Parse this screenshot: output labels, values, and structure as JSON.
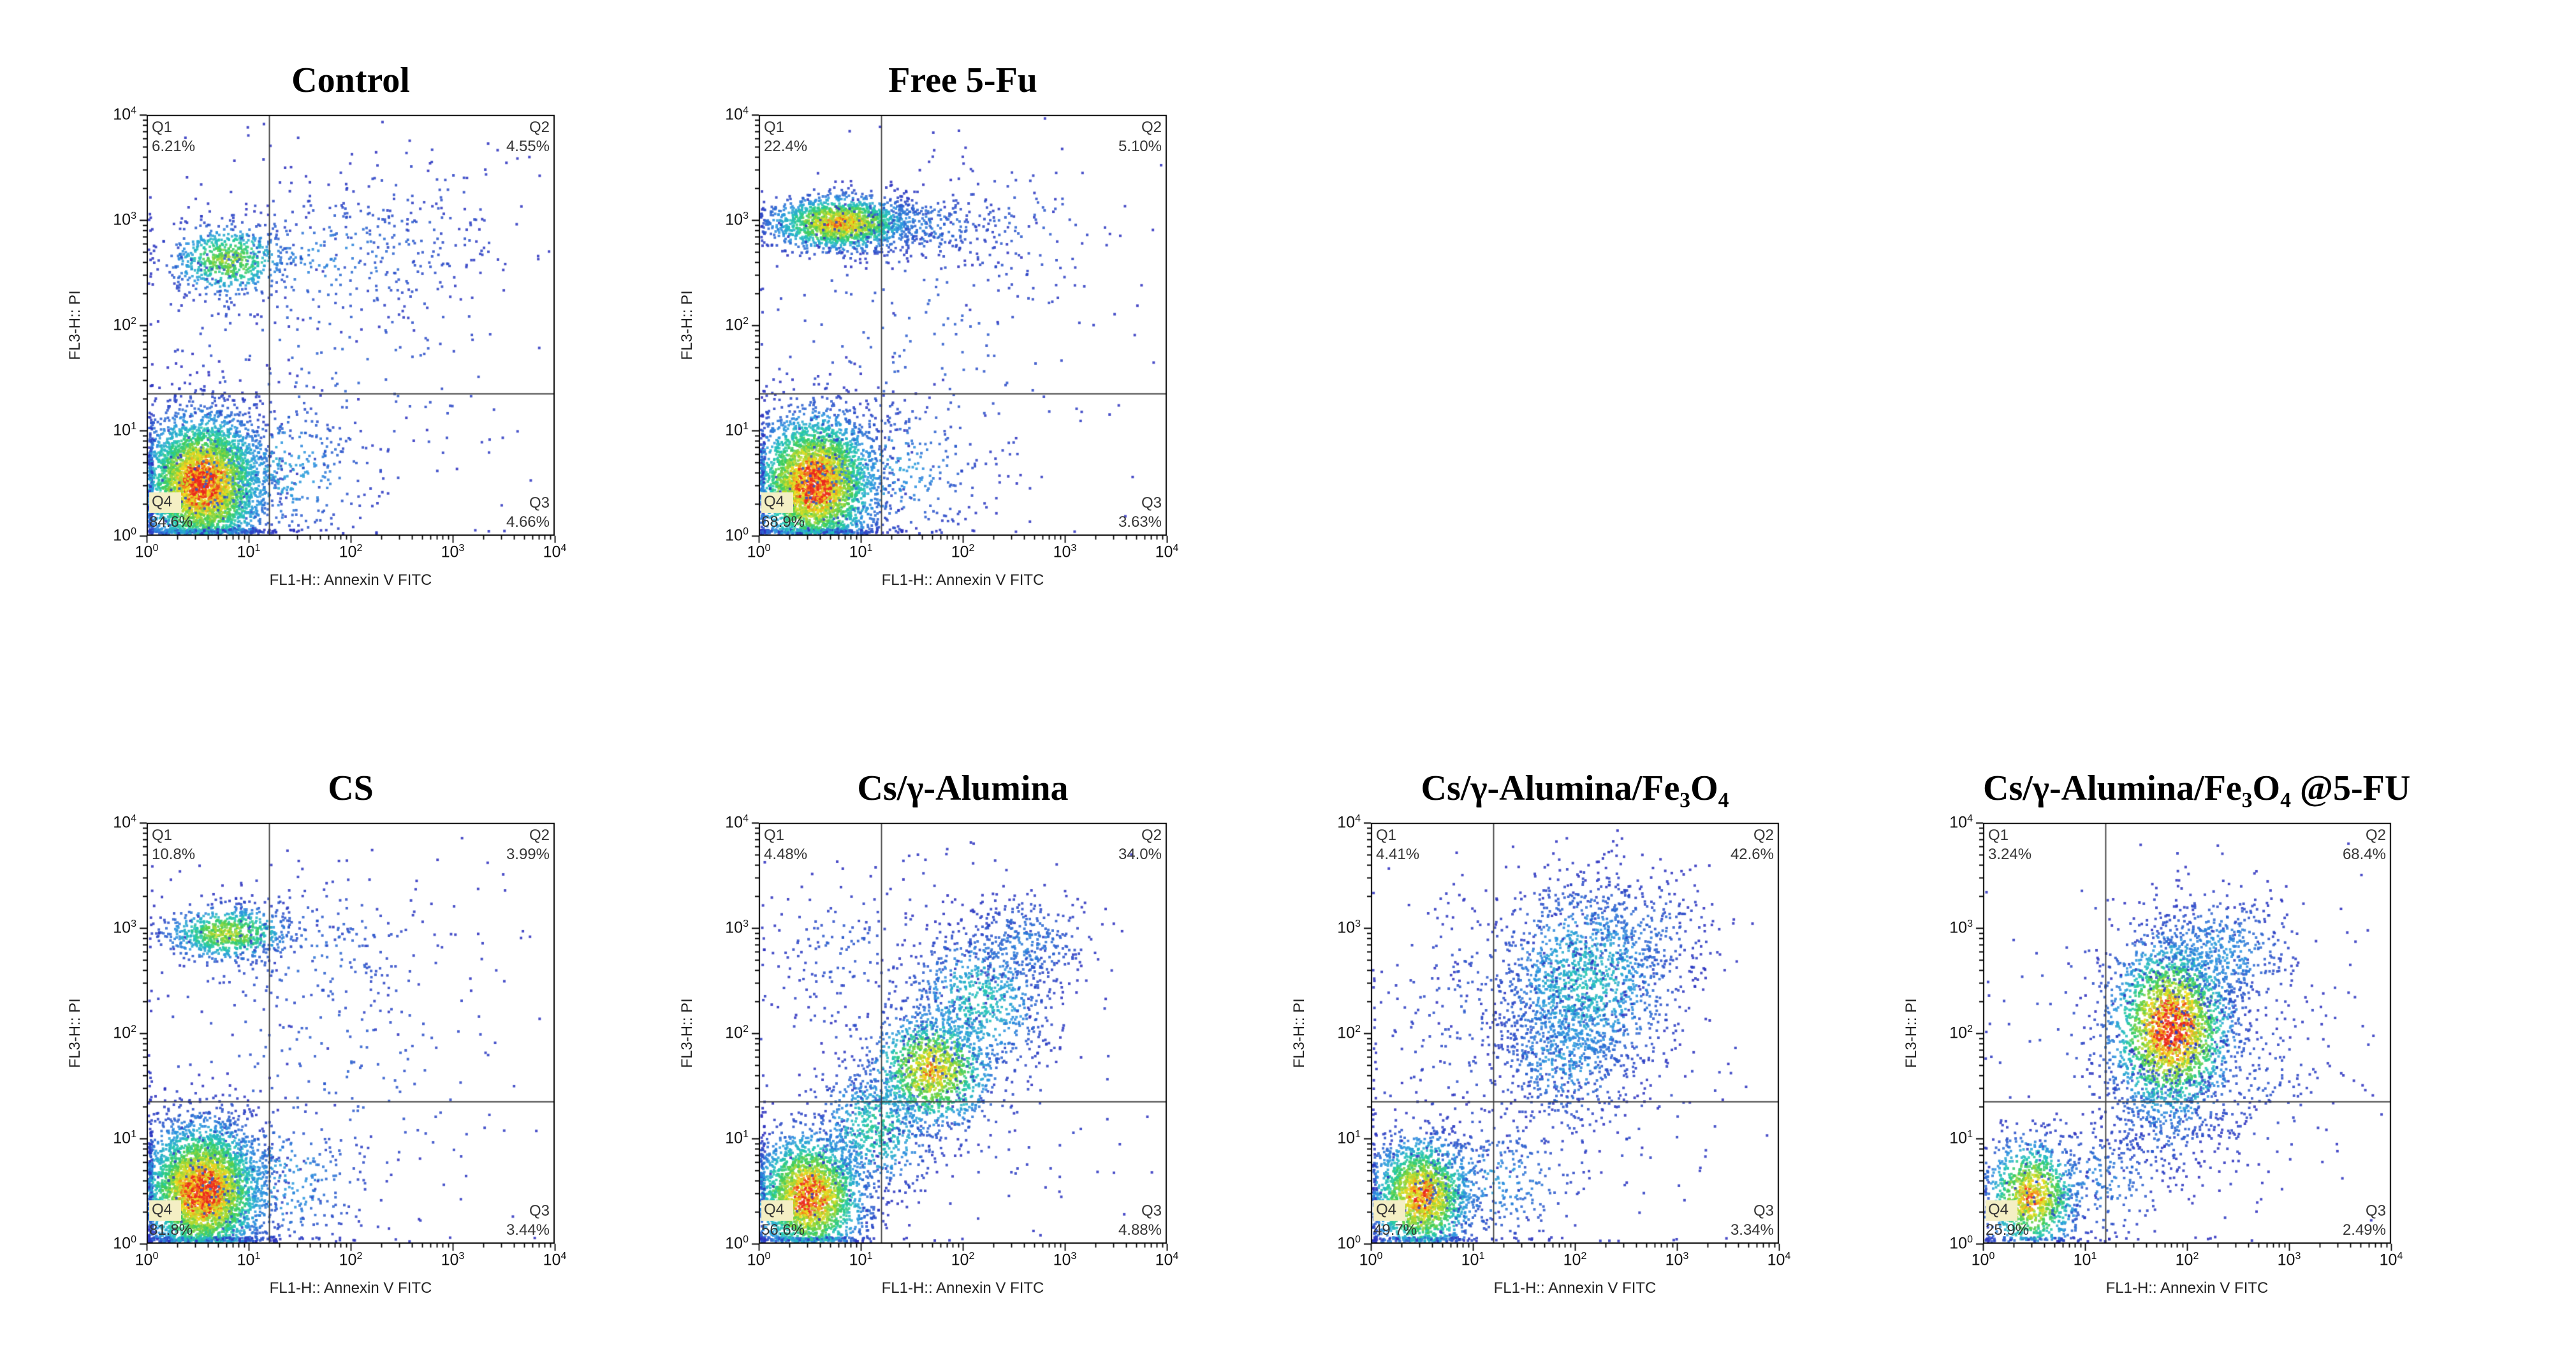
{
  "axis": {
    "x_label": "FL1-H:: Annexin V FITC",
    "y_label": "FL3-H:: PI",
    "tick_exponents": [
      0,
      1,
      2,
      3,
      4
    ]
  },
  "colors": {
    "density_scale": [
      "#2d2dbe",
      "#2d96e1",
      "#23c8b4",
      "#3ccd5a",
      "#aad732",
      "#f5e11e",
      "#f59619",
      "#eb281e"
    ],
    "frame": "#000000",
    "gate_line": "#3c3c3c",
    "quadrant_label": "#353535",
    "q4_chip_bg": "#f4efc4",
    "background": "#ffffff"
  },
  "chart_data": [
    {
      "type": "scatter",
      "title": "Control",
      "grid": {
        "row": 0,
        "col": 0
      },
      "xlabel": "FL1-H:: Annexin V FITC",
      "ylabel": "FL3-H:: PI",
      "x_scale": "log10",
      "y_scale": "log10",
      "x_log_range": [
        0,
        4
      ],
      "y_log_range": [
        0,
        4
      ],
      "gate": {
        "x_log": 1.2,
        "y_log": 1.35
      },
      "quadrants": [
        {
          "name": "Q1",
          "value": "6.21%",
          "position": "top-left"
        },
        {
          "name": "Q2",
          "value": "4.55%",
          "position": "top-right"
        },
        {
          "name": "Q3",
          "value": "4.66%",
          "position": "bottom-right"
        },
        {
          "name": "Q4",
          "value": "84.6%",
          "position": "bottom-left"
        }
      ],
      "clusters": [
        {
          "cx": 0.55,
          "cy": 0.5,
          "sx": 0.3,
          "sy": 0.33,
          "n": 4200,
          "density": 1.0
        },
        {
          "cx": 1.25,
          "cy": 0.62,
          "sx": 0.5,
          "sy": 0.35,
          "n": 380,
          "density": 0.22
        },
        {
          "cx": 0.8,
          "cy": 2.62,
          "sx": 0.28,
          "sy": 0.17,
          "n": 650,
          "density": 0.6
        },
        {
          "cx": 1.7,
          "cy": 2.65,
          "sx": 0.8,
          "sy": 0.33,
          "n": 300,
          "density": 0.14
        },
        {
          "cx": 1.8,
          "cy": 1.7,
          "sx": 1.1,
          "sy": 1.1,
          "n": 260,
          "density": 0.08
        },
        {
          "cx": 2.6,
          "cy": 2.9,
          "sx": 0.6,
          "sy": 0.45,
          "n": 110,
          "density": 0.08
        }
      ]
    },
    {
      "type": "scatter",
      "title": "Free 5-Fu",
      "grid": {
        "row": 0,
        "col": 1
      },
      "xlabel": "FL1-H:: Annexin V FITC",
      "ylabel": "FL3-H:: PI",
      "x_scale": "log10",
      "y_scale": "log10",
      "x_log_range": [
        0,
        4
      ],
      "y_log_range": [
        0,
        4
      ],
      "gate": {
        "x_log": 1.2,
        "y_log": 1.35
      },
      "quadrants": [
        {
          "name": "Q1",
          "value": "22.4%",
          "position": "top-left"
        },
        {
          "name": "Q2",
          "value": "5.10%",
          "position": "top-right"
        },
        {
          "name": "Q3",
          "value": "3.63%",
          "position": "bottom-right"
        },
        {
          "name": "Q4",
          "value": "68.9%",
          "position": "bottom-left"
        }
      ],
      "clusters": [
        {
          "cx": 0.55,
          "cy": 0.5,
          "sx": 0.3,
          "sy": 0.33,
          "n": 3600,
          "density": 1.0
        },
        {
          "cx": 1.25,
          "cy": 0.62,
          "sx": 0.5,
          "sy": 0.35,
          "n": 330,
          "density": 0.2
        },
        {
          "cx": 0.8,
          "cy": 2.97,
          "sx": 0.34,
          "sy": 0.13,
          "n": 1700,
          "density": 0.85
        },
        {
          "cx": 1.55,
          "cy": 2.95,
          "sx": 0.45,
          "sy": 0.17,
          "n": 260,
          "density": 0.14
        },
        {
          "cx": 1.6,
          "cy": 1.8,
          "sx": 1.0,
          "sy": 1.0,
          "n": 250,
          "density": 0.08
        },
        {
          "cx": 2.5,
          "cy": 2.9,
          "sx": 0.55,
          "sy": 0.4,
          "n": 100,
          "density": 0.08
        }
      ]
    },
    {
      "type": "scatter",
      "title": "CS",
      "grid": {
        "row": 1,
        "col": 0
      },
      "xlabel": "FL1-H:: Annexin V FITC",
      "ylabel": "FL3-H:: PI",
      "x_scale": "log10",
      "y_scale": "log10",
      "x_log_range": [
        0,
        4
      ],
      "y_log_range": [
        0,
        4
      ],
      "gate": {
        "x_log": 1.2,
        "y_log": 1.35
      },
      "quadrants": [
        {
          "name": "Q1",
          "value": "10.8%",
          "position": "top-left"
        },
        {
          "name": "Q2",
          "value": "3.99%",
          "position": "top-right"
        },
        {
          "name": "Q3",
          "value": "3.44%",
          "position": "bottom-right"
        },
        {
          "name": "Q4",
          "value": "81.8%",
          "position": "bottom-left"
        }
      ],
      "clusters": [
        {
          "cx": 0.55,
          "cy": 0.5,
          "sx": 0.3,
          "sy": 0.33,
          "n": 4000,
          "density": 1.0
        },
        {
          "cx": 1.25,
          "cy": 0.6,
          "sx": 0.5,
          "sy": 0.35,
          "n": 360,
          "density": 0.2
        },
        {
          "cx": 0.8,
          "cy": 2.95,
          "sx": 0.3,
          "sy": 0.13,
          "n": 750,
          "density": 0.65
        },
        {
          "cx": 1.6,
          "cy": 2.8,
          "sx": 0.7,
          "sy": 0.4,
          "n": 220,
          "density": 0.1
        },
        {
          "cx": 1.7,
          "cy": 1.7,
          "sx": 1.1,
          "sy": 1.0,
          "n": 260,
          "density": 0.08
        }
      ]
    },
    {
      "type": "scatter",
      "title": "Cs/γ-Alumina",
      "grid": {
        "row": 1,
        "col": 1
      },
      "xlabel": "FL1-H:: Annexin V FITC",
      "ylabel": "FL3-H:: PI",
      "x_scale": "log10",
      "y_scale": "log10",
      "x_log_range": [
        0,
        4
      ],
      "y_log_range": [
        0,
        4
      ],
      "gate": {
        "x_log": 1.2,
        "y_log": 1.35
      },
      "quadrants": [
        {
          "name": "Q1",
          "value": "4.48%",
          "position": "top-left"
        },
        {
          "name": "Q2",
          "value": "34.0%",
          "position": "top-right"
        },
        {
          "name": "Q3",
          "value": "4.88%",
          "position": "bottom-right"
        },
        {
          "name": "Q4",
          "value": "56.6%",
          "position": "bottom-left"
        }
      ],
      "clusters": [
        {
          "cx": 0.5,
          "cy": 0.45,
          "sx": 0.27,
          "sy": 0.3,
          "n": 2400,
          "density": 0.95
        },
        {
          "cx": 1.15,
          "cy": 1.1,
          "sx": 0.3,
          "sy": 0.3,
          "n": 650,
          "density": 0.38
        },
        {
          "cx": 1.7,
          "cy": 1.65,
          "sx": 0.3,
          "sy": 0.28,
          "n": 1300,
          "density": 0.8
        },
        {
          "cx": 2.15,
          "cy": 2.3,
          "sx": 0.35,
          "sy": 0.35,
          "n": 750,
          "density": 0.32
        },
        {
          "cx": 2.6,
          "cy": 2.85,
          "sx": 0.33,
          "sy": 0.24,
          "n": 330,
          "density": 0.14
        },
        {
          "cx": 0.85,
          "cy": 2.8,
          "sx": 0.4,
          "sy": 0.3,
          "n": 110,
          "density": 0.08
        },
        {
          "cx": 1.7,
          "cy": 1.9,
          "sx": 1.1,
          "sy": 1.0,
          "n": 280,
          "density": 0.07
        }
      ]
    },
    {
      "type": "scatter",
      "title": "Cs/γ-Alumina/Fe₃O₄",
      "grid": {
        "row": 1,
        "col": 2
      },
      "xlabel": "FL1-H:: Annexin V FITC",
      "ylabel": "FL3-H:: PI",
      "x_scale": "log10",
      "y_scale": "log10",
      "x_log_range": [
        0,
        4
      ],
      "y_log_range": [
        0,
        4
      ],
      "gate": {
        "x_log": 1.2,
        "y_log": 1.35
      },
      "quadrants": [
        {
          "name": "Q1",
          "value": "4.41%",
          "position": "top-left"
        },
        {
          "name": "Q2",
          "value": "42.6%",
          "position": "top-right"
        },
        {
          "name": "Q3",
          "value": "3.34%",
          "position": "bottom-right"
        },
        {
          "name": "Q4",
          "value": "49.7%",
          "position": "bottom-left"
        }
      ],
      "clusters": [
        {
          "cx": 0.5,
          "cy": 0.45,
          "sx": 0.25,
          "sy": 0.28,
          "n": 1900,
          "density": 0.9
        },
        {
          "cx": 1.2,
          "cy": 0.6,
          "sx": 0.45,
          "sy": 0.3,
          "n": 330,
          "density": 0.18
        },
        {
          "cx": 2.1,
          "cy": 2.5,
          "sx": 0.45,
          "sy": 0.48,
          "n": 1500,
          "density": 0.3
        },
        {
          "cx": 1.9,
          "cy": 1.8,
          "sx": 0.35,
          "sy": 0.35,
          "n": 450,
          "density": 0.2
        },
        {
          "cx": 2.6,
          "cy": 2.95,
          "sx": 0.4,
          "sy": 0.28,
          "n": 230,
          "density": 0.12
        },
        {
          "cx": 1.0,
          "cy": 2.3,
          "sx": 0.5,
          "sy": 0.6,
          "n": 170,
          "density": 0.07
        },
        {
          "cx": 1.7,
          "cy": 1.6,
          "sx": 1.1,
          "sy": 1.0,
          "n": 260,
          "density": 0.07
        }
      ]
    },
    {
      "type": "scatter",
      "title": "Cs/γ-Alumina/Fe₃O₄ @5-FU",
      "grid": {
        "row": 1,
        "col": 3
      },
      "xlabel": "FL1-H:: Annexin V FITC",
      "ylabel": "FL3-H:: PI",
      "x_scale": "log10",
      "y_scale": "log10",
      "x_log_range": [
        0,
        4
      ],
      "y_log_range": [
        0,
        4
      ],
      "gate": {
        "x_log": 1.2,
        "y_log": 1.35
      },
      "quadrants": [
        {
          "name": "Q1",
          "value": "3.24%",
          "position": "top-left"
        },
        {
          "name": "Q2",
          "value": "68.4%",
          "position": "top-right"
        },
        {
          "name": "Q3",
          "value": "2.49%",
          "position": "bottom-right"
        },
        {
          "name": "Q4",
          "value": "25.9%",
          "position": "bottom-left"
        }
      ],
      "clusters": [
        {
          "cx": 0.48,
          "cy": 0.45,
          "sx": 0.23,
          "sy": 0.27,
          "n": 1100,
          "density": 0.85
        },
        {
          "cx": 1.1,
          "cy": 0.6,
          "sx": 0.42,
          "sy": 0.3,
          "n": 240,
          "density": 0.14
        },
        {
          "cx": 1.85,
          "cy": 2.05,
          "sx": 0.3,
          "sy": 0.42,
          "n": 2500,
          "density": 1.0
        },
        {
          "cx": 2.3,
          "cy": 2.75,
          "sx": 0.4,
          "sy": 0.3,
          "n": 550,
          "density": 0.18
        },
        {
          "cx": 1.75,
          "cy": 1.25,
          "sx": 0.33,
          "sy": 0.3,
          "n": 280,
          "density": 0.14
        },
        {
          "cx": 2.55,
          "cy": 1.6,
          "sx": 0.5,
          "sy": 0.5,
          "n": 180,
          "density": 0.07
        },
        {
          "cx": 1.8,
          "cy": 1.9,
          "sx": 1.1,
          "sy": 1.0,
          "n": 240,
          "density": 0.07
        }
      ]
    }
  ]
}
